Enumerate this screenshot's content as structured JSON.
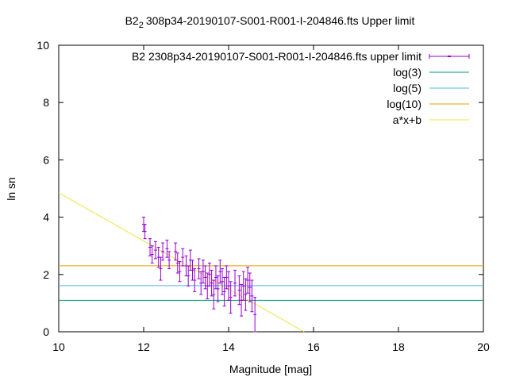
{
  "chart_data": {
    "type": "scatter",
    "title": {
      "pre": "B2",
      "sub": "2",
      "post": "308p34-20190107-S001-R001-I-204846.fts Upper limit"
    },
    "xlabel": "Magnitude [mag]",
    "ylabel": "ln sn",
    "xlim": [
      10,
      20
    ],
    "ylim": [
      0,
      10
    ],
    "xticks": [
      "10",
      "12",
      "14",
      "16",
      "18",
      "20"
    ],
    "yticks": [
      "0",
      "2",
      "4",
      "6",
      "8",
      "10"
    ],
    "grid": false,
    "legend_position": "top-right",
    "series": [
      {
        "name": "B2 2308p34-20190107-S001-R001-I-204846.fts upper limit",
        "kind": "errorbars",
        "color": "#9400d3",
        "points": [
          {
            "x": 12.0,
            "y": 3.75,
            "e": 0.25
          },
          {
            "x": 12.03,
            "y": 3.5,
            "e": 0.25
          },
          {
            "x": 12.15,
            "y": 2.95,
            "e": 0.3
          },
          {
            "x": 12.2,
            "y": 2.7,
            "e": 0.3
          },
          {
            "x": 12.28,
            "y": 2.85,
            "e": 0.3
          },
          {
            "x": 12.35,
            "y": 2.6,
            "e": 0.35
          },
          {
            "x": 12.4,
            "y": 2.2,
            "e": 0.4
          },
          {
            "x": 12.45,
            "y": 2.8,
            "e": 0.3
          },
          {
            "x": 12.55,
            "y": 2.9,
            "e": 0.3
          },
          {
            "x": 12.6,
            "y": 2.5,
            "e": 0.3
          },
          {
            "x": 12.75,
            "y": 2.8,
            "e": 0.3
          },
          {
            "x": 12.8,
            "y": 2.4,
            "e": 0.35
          },
          {
            "x": 12.85,
            "y": 2.1,
            "e": 0.35
          },
          {
            "x": 12.92,
            "y": 2.6,
            "e": 0.3
          },
          {
            "x": 13.0,
            "y": 2.3,
            "e": 0.35
          },
          {
            "x": 13.05,
            "y": 1.95,
            "e": 0.35
          },
          {
            "x": 13.1,
            "y": 2.5,
            "e": 0.35
          },
          {
            "x": 13.15,
            "y": 2.15,
            "e": 0.35
          },
          {
            "x": 13.2,
            "y": 1.8,
            "e": 0.4
          },
          {
            "x": 13.3,
            "y": 2.2,
            "e": 0.35
          },
          {
            "x": 13.35,
            "y": 1.7,
            "e": 0.4
          },
          {
            "x": 13.4,
            "y": 2.1,
            "e": 0.4
          },
          {
            "x": 13.45,
            "y": 1.9,
            "e": 0.4
          },
          {
            "x": 13.5,
            "y": 1.6,
            "e": 0.45
          },
          {
            "x": 13.55,
            "y": 2.0,
            "e": 0.4
          },
          {
            "x": 13.6,
            "y": 1.7,
            "e": 0.45
          },
          {
            "x": 13.65,
            "y": 1.3,
            "e": 0.5
          },
          {
            "x": 13.7,
            "y": 1.9,
            "e": 0.4
          },
          {
            "x": 13.75,
            "y": 1.5,
            "e": 0.45
          },
          {
            "x": 13.8,
            "y": 2.1,
            "e": 0.4
          },
          {
            "x": 13.85,
            "y": 1.75,
            "e": 0.45
          },
          {
            "x": 13.9,
            "y": 1.4,
            "e": 0.5
          },
          {
            "x": 13.95,
            "y": 1.9,
            "e": 0.4
          },
          {
            "x": 14.0,
            "y": 1.6,
            "e": 0.5
          },
          {
            "x": 14.05,
            "y": 1.2,
            "e": 0.55
          },
          {
            "x": 14.15,
            "y": 1.7,
            "e": 0.45
          },
          {
            "x": 14.25,
            "y": 1.45,
            "e": 0.5
          },
          {
            "x": 14.3,
            "y": 1.1,
            "e": 0.55
          },
          {
            "x": 14.35,
            "y": 1.6,
            "e": 0.5
          },
          {
            "x": 14.4,
            "y": 1.3,
            "e": 0.55
          },
          {
            "x": 14.45,
            "y": 1.8,
            "e": 0.45
          },
          {
            "x": 14.5,
            "y": 1.55,
            "e": 0.5
          },
          {
            "x": 14.55,
            "y": 1.25,
            "e": 0.55
          },
          {
            "x": 14.62,
            "y": 0.6,
            "e": 0.6
          }
        ]
      },
      {
        "name": "log(3)",
        "kind": "hline",
        "y": 1.0986,
        "color": "#009e73"
      },
      {
        "name": "log(5)",
        "kind": "hline",
        "y": 1.6094,
        "color": "#56b4e9"
      },
      {
        "name": "log(10)",
        "kind": "hline",
        "y": 2.3026,
        "color": "#e69f00"
      },
      {
        "name": "a*x+b",
        "kind": "line",
        "x": [
          10,
          15.78
        ],
        "y": [
          4.85,
          0
        ],
        "color": "#f0e442"
      }
    ]
  }
}
